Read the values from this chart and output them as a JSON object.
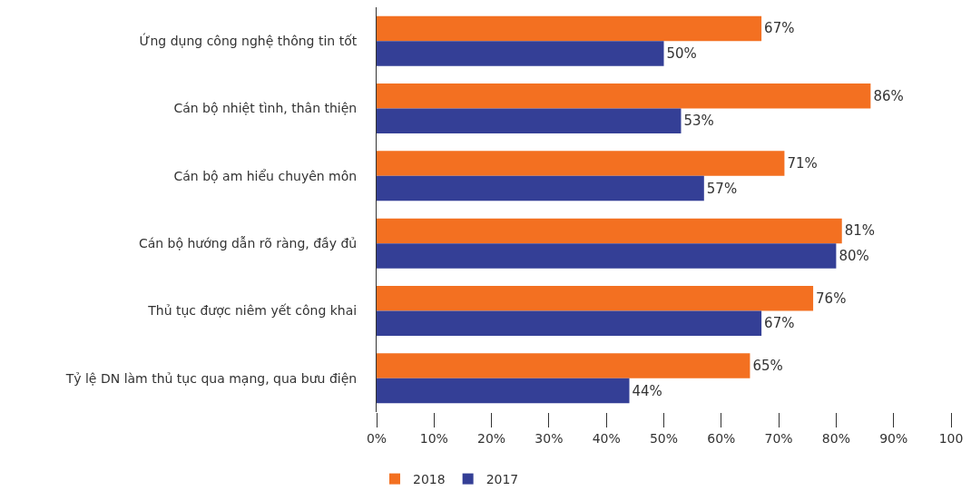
{
  "chart_data": {
    "type": "bar",
    "orientation": "horizontal",
    "categories": [
      "Ứng dụng công nghệ thông tin tốt",
      "Cán bộ nhiệt tình, thân thiện",
      "Cán bộ am hiểu chuyên môn",
      "Cán bộ hướng dẫn rõ ràng, đầy đủ",
      "Thủ tục được niêm yết công khai",
      "Tỷ lệ DN làm thủ tục qua mạng, qua bưu điện"
    ],
    "series": [
      {
        "name": "2018",
        "color": "#f37021",
        "values": [
          67,
          86,
          71,
          81,
          76,
          65
        ],
        "value_labels": [
          "67%",
          "86%",
          "71%",
          "81%",
          "76%",
          "65%"
        ]
      },
      {
        "name": "2017",
        "color": "#343f96",
        "values": [
          50,
          53,
          57,
          80,
          67,
          44
        ],
        "value_labels": [
          "50%",
          "53%",
          "57%",
          "80%",
          "67%",
          "44%"
        ]
      }
    ],
    "xlim": [
      0,
      100
    ],
    "xticks": [
      {
        "value": 0,
        "label": "0%"
      },
      {
        "value": 10,
        "label": "10%"
      },
      {
        "value": 20,
        "label": "20%"
      },
      {
        "value": 30,
        "label": "30%"
      },
      {
        "value": 40,
        "label": "40%"
      },
      {
        "value": 50,
        "label": "50%"
      },
      {
        "value": 60,
        "label": "60%"
      },
      {
        "value": 70,
        "label": "70%"
      },
      {
        "value": 80,
        "label": "80%"
      },
      {
        "value": 90,
        "label": "90%"
      },
      100
    ],
    "legend": "bottom left"
  }
}
